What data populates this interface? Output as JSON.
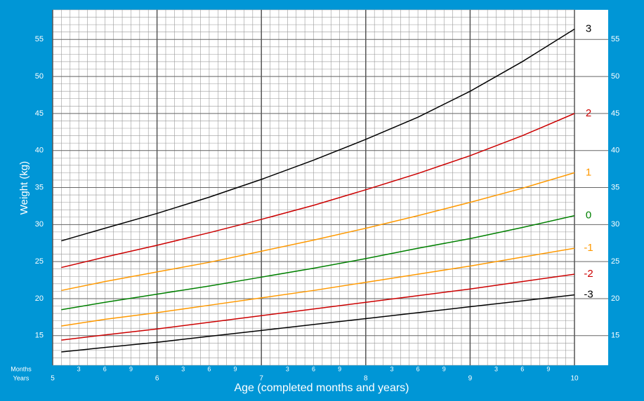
{
  "chart_data": {
    "type": "line",
    "y_axis_label": "Weight (kg)",
    "x_axis_label": "Age (completed months and years)",
    "month_row_label": "Months",
    "year_row_label": "Years",
    "x": [
      61,
      66,
      72,
      78,
      84,
      90,
      96,
      102,
      108,
      114,
      120
    ],
    "xlim": [
      60,
      120
    ],
    "ylim": [
      11,
      59
    ],
    "xticks": [
      {
        "value": 60,
        "label": "5"
      },
      {
        "value": 72,
        "label": "6"
      },
      {
        "value": 84,
        "label": "7"
      },
      {
        "value": 96,
        "label": "8"
      },
      {
        "value": 108,
        "label": "9"
      },
      {
        "value": 120,
        "label": "10"
      }
    ],
    "month_ticks": [
      {
        "value": 63,
        "label": "3"
      },
      {
        "value": 66,
        "label": "6"
      },
      {
        "value": 69,
        "label": "9"
      },
      {
        "value": 75,
        "label": "3"
      },
      {
        "value": 78,
        "label": "6"
      },
      {
        "value": 81,
        "label": "9"
      },
      {
        "value": 87,
        "label": "3"
      },
      {
        "value": 90,
        "label": "6"
      },
      {
        "value": 93,
        "label": "9"
      },
      {
        "value": 99,
        "label": "3"
      },
      {
        "value": 102,
        "label": "6"
      },
      {
        "value": 105,
        "label": "9"
      },
      {
        "value": 111,
        "label": "3"
      },
      {
        "value": 114,
        "label": "6"
      },
      {
        "value": 117,
        "label": "9"
      }
    ],
    "yticks": [
      15,
      20,
      25,
      30,
      35,
      40,
      45,
      50,
      55
    ],
    "grid": true,
    "series": [
      {
        "name": "3",
        "color": "#000000",
        "values": [
          27.8,
          29.5,
          31.5,
          33.7,
          36.1,
          38.7,
          41.5,
          44.5,
          48.0,
          52.0,
          56.4
        ]
      },
      {
        "name": "2",
        "color": "#cc0000",
        "values": [
          24.2,
          25.6,
          27.2,
          28.9,
          30.7,
          32.6,
          34.7,
          36.9,
          39.3,
          42.0,
          45.0
        ]
      },
      {
        "name": "1",
        "color": "#ff9900",
        "values": [
          21.1,
          22.3,
          23.6,
          24.9,
          26.4,
          27.9,
          29.5,
          31.2,
          33.0,
          34.9,
          37.0
        ]
      },
      {
        "name": "0",
        "color": "#008000",
        "values": [
          18.5,
          19.5,
          20.6,
          21.7,
          22.9,
          24.1,
          25.4,
          26.8,
          28.1,
          29.6,
          31.2
        ]
      },
      {
        "name": "-1",
        "color": "#ff9900",
        "values": [
          16.3,
          17.2,
          18.1,
          19.1,
          20.1,
          21.1,
          22.2,
          23.3,
          24.4,
          25.6,
          26.8
        ]
      },
      {
        "name": "-2",
        "color": "#cc0000",
        "values": [
          14.4,
          15.1,
          15.9,
          16.8,
          17.7,
          18.6,
          19.5,
          20.4,
          21.3,
          22.3,
          23.3
        ]
      },
      {
        "name": "-3",
        "color": "#000000",
        "values": [
          12.8,
          13.4,
          14.1,
          14.9,
          15.7,
          16.5,
          17.3,
          18.1,
          18.9,
          19.7,
          20.5
        ]
      }
    ]
  }
}
